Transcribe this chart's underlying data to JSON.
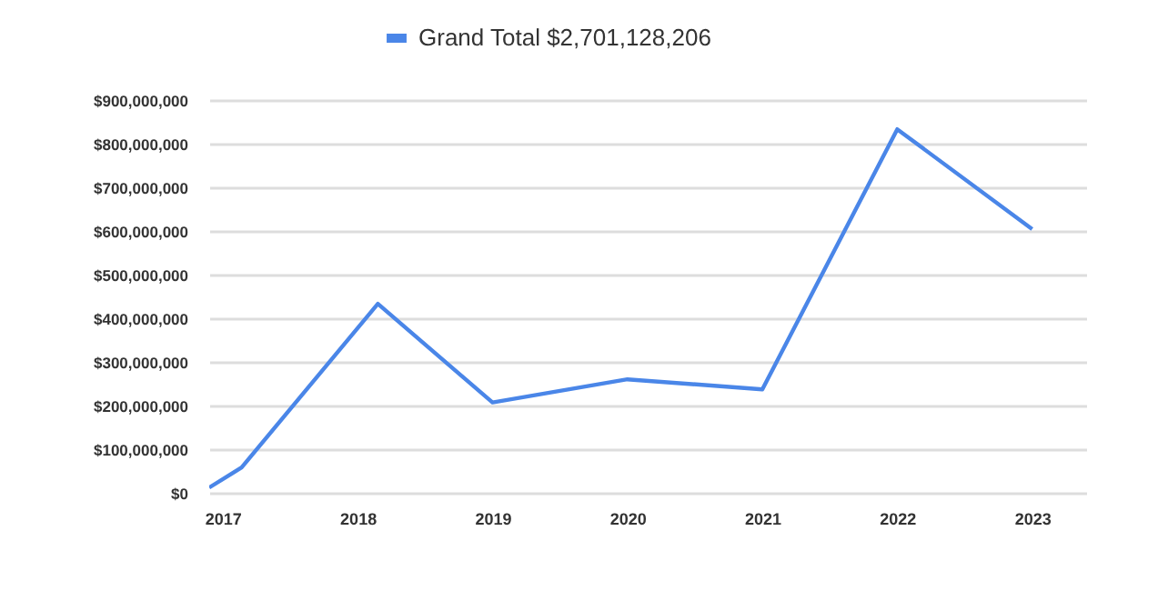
{
  "chart_data": {
    "type": "line",
    "x": [
      2016.9,
      2017.14,
      2018.15,
      2019,
      2020,
      2021,
      2022,
      2023
    ],
    "series": [
      {
        "name": "Grand Total $2,701,128,206",
        "color": "#4a86e8",
        "values": [
          12000000,
          58000000,
          433000000,
          207000000,
          260000000,
          237000000,
          833000000,
          604000000
        ]
      }
    ],
    "xlim": [
      2016.9,
      2023.4
    ],
    "xticks": [
      2017,
      2018,
      2019,
      2020,
      2021,
      2022,
      2023
    ],
    "ylim": [
      0,
      900000000
    ],
    "yticks": [
      {
        "value": 0,
        "label": "$0"
      },
      {
        "value": 100000000,
        "label": "$100,000,000"
      },
      {
        "value": 200000000,
        "label": "$200,000,000"
      },
      {
        "value": 300000000,
        "label": "$300,000,000"
      },
      {
        "value": 400000000,
        "label": "$400,000,000"
      },
      {
        "value": 500000000,
        "label": "$500,000,000"
      },
      {
        "value": 600000000,
        "label": "$600,000,000"
      },
      {
        "value": 700000000,
        "label": "$700,000,000"
      },
      {
        "value": 800000000,
        "label": "$800,000,000"
      },
      {
        "value": 900000000,
        "label": "$900,000,000"
      }
    ],
    "grid": "y",
    "legend": "top",
    "marker": "none"
  }
}
